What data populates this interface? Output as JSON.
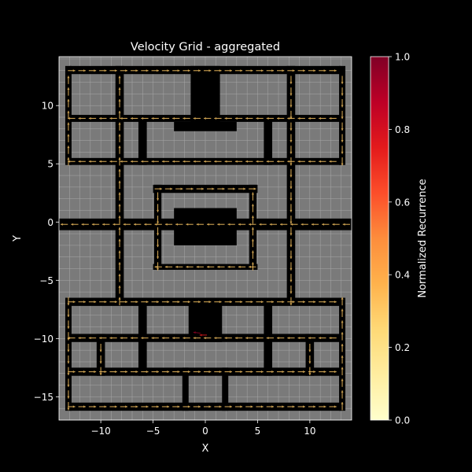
{
  "chart_data": {
    "type": "quiver",
    "title": "Velocity Grid - aggregated",
    "xlabel": "X",
    "ylabel": "Y",
    "xlim": [
      -14,
      14
    ],
    "ylim": [
      -17,
      14.2
    ],
    "xticks": [
      -10,
      -5,
      0,
      5,
      10
    ],
    "yticks": [
      -15,
      -10,
      -5,
      0,
      5,
      10
    ],
    "grid": true,
    "background": "#000000",
    "floor_color": "#7a7a7a",
    "wall_color": "#000000",
    "colorbar": {
      "label": "Normalized Recurrence",
      "min": 0,
      "max": 1,
      "ticks": [
        0.0,
        0.2,
        0.4,
        0.6,
        0.8,
        1.0
      ],
      "tick_labels": [
        "0.0",
        "0.2",
        "0.4",
        "0.6",
        "0.8",
        "1.0"
      ],
      "colormap": "YlOrRd",
      "stops": [
        "#ffffcc",
        "#ffeda0",
        "#fed976",
        "#feb24c",
        "#fd8d3c",
        "#fc4e2a",
        "#e31a1c",
        "#bd0026",
        "#800026"
      ]
    },
    "obstacles": [
      {
        "x0": -14,
        "x1": 14,
        "y0": -0.7,
        "y1": 0.3
      },
      {
        "x0": -3,
        "x1": 3,
        "y0": -2,
        "y1": 1.2
      },
      {
        "x0": -5,
        "x1": 5,
        "y0": 2.5,
        "y1": 3.2
      },
      {
        "x0": -5,
        "x1": 5,
        "y0": -4.1,
        "y1": -3.6
      },
      {
        "x0": -4.9,
        "x1": -4.2,
        "y0": -4.1,
        "y1": 3.2
      },
      {
        "x0": 4.2,
        "x1": 4.9,
        "y0": -4.1,
        "y1": 3.2
      },
      {
        "x0": -13,
        "x1": 13,
        "y0": 12.7,
        "y1": 13.4
      },
      {
        "x0": -13,
        "x1": 13,
        "y0": 8.6,
        "y1": 9.2
      },
      {
        "x0": -13,
        "x1": 13,
        "y0": 4.9,
        "y1": 5.5
      },
      {
        "x0": -13.4,
        "x1": -12.8,
        "y0": 4.9,
        "y1": 13.4
      },
      {
        "x0": 12.8,
        "x1": 13.4,
        "y0": 4.9,
        "y1": 13.4
      },
      {
        "x0": -8.6,
        "x1": -7.8,
        "y0": -7,
        "y1": 13.4
      },
      {
        "x0": 7.8,
        "x1": 8.6,
        "y0": -7,
        "y1": 13.4
      },
      {
        "x0": -1.4,
        "x1": 1.4,
        "y0": 8.6,
        "y1": 13.4
      },
      {
        "x0": -3,
        "x1": 3,
        "y0": 7.8,
        "y1": 8.6
      },
      {
        "x0": -6.4,
        "x1": -5.6,
        "y0": 4.9,
        "y1": 9.2
      },
      {
        "x0": 5.6,
        "x1": 6.4,
        "y0": 4.9,
        "y1": 9.2
      },
      {
        "x0": -13,
        "x1": 13,
        "y0": -7.2,
        "y1": -6.5
      },
      {
        "x0": -13,
        "x1": 13,
        "y0": -10.3,
        "y1": -9.6
      },
      {
        "x0": -13,
        "x1": 13,
        "y0": -13.2,
        "y1": -12.5
      },
      {
        "x0": -13,
        "x1": 13,
        "y0": -16.2,
        "y1": -15.5
      },
      {
        "x0": -13.4,
        "x1": -12.8,
        "y0": -16.2,
        "y1": -6.5
      },
      {
        "x0": 12.8,
        "x1": 13.4,
        "y0": -16.2,
        "y1": -6.5
      },
      {
        "x0": -1.6,
        "x1": 1.6,
        "y0": -10.3,
        "y1": -6.5
      },
      {
        "x0": -10.4,
        "x1": -9.6,
        "y0": -13.2,
        "y1": -9.6
      },
      {
        "x0": 9.6,
        "x1": 10.4,
        "y0": -13.2,
        "y1": -9.6
      },
      {
        "x0": -6.4,
        "x1": -5.6,
        "y0": -13.2,
        "y1": -6.5
      },
      {
        "x0": 5.6,
        "x1": 6.4,
        "y0": -13.2,
        "y1": -6.5
      },
      {
        "x0": -2.2,
        "x1": -1.6,
        "y0": -16.2,
        "y1": -12.5
      },
      {
        "x0": 1.6,
        "x1": 2.2,
        "y0": -16.2,
        "y1": -12.5
      }
    ],
    "arrow_lanes": [
      {
        "axis": "h",
        "y": 13.0,
        "from": -12.8,
        "to": 12.8,
        "step": 1.0,
        "dir": 1
      },
      {
        "axis": "h",
        "y": 8.9,
        "from": -12.8,
        "to": 12.8,
        "step": 1.0,
        "dir": -1
      },
      {
        "axis": "h",
        "y": 5.2,
        "from": -12.8,
        "to": 12.8,
        "step": 1.0,
        "dir": -1
      },
      {
        "axis": "h",
        "y": -0.2,
        "from": -13.5,
        "to": 13.5,
        "step": 1.0,
        "dir": -1
      },
      {
        "axis": "h",
        "y": 2.85,
        "from": -4.5,
        "to": 4.5,
        "step": 1.0,
        "dir": 1
      },
      {
        "axis": "h",
        "y": -3.85,
        "from": -4.5,
        "to": 4.5,
        "step": 1.0,
        "dir": -1
      },
      {
        "axis": "h",
        "y": -6.85,
        "from": -12.8,
        "to": 12.8,
        "step": 1.0,
        "dir": 1
      },
      {
        "axis": "h",
        "y": -9.95,
        "from": -12.8,
        "to": 12.8,
        "step": 1.0,
        "dir": -1
      },
      {
        "axis": "h",
        "y": -12.85,
        "from": -12.8,
        "to": 12.8,
        "step": 1.0,
        "dir": 1
      },
      {
        "axis": "h",
        "y": -15.85,
        "from": -12.8,
        "to": 12.8,
        "step": 1.0,
        "dir": 1
      },
      {
        "axis": "v",
        "x": -13.1,
        "from": 5.2,
        "to": 13.0,
        "step": 1.0,
        "dir": 1
      },
      {
        "axis": "v",
        "x": 13.1,
        "from": 5.2,
        "to": 13.0,
        "step": 1.0,
        "dir": -1
      },
      {
        "axis": "v",
        "x": -8.2,
        "from": -6.8,
        "to": 13.0,
        "step": 1.0,
        "dir": 1
      },
      {
        "axis": "v",
        "x": 8.2,
        "from": -6.8,
        "to": 13.0,
        "step": 1.0,
        "dir": -1
      },
      {
        "axis": "v",
        "x": -4.55,
        "from": -3.8,
        "to": 2.8,
        "step": 1.0,
        "dir": -1
      },
      {
        "axis": "v",
        "x": 4.55,
        "from": -3.8,
        "to": 2.8,
        "step": 1.0,
        "dir": 1
      },
      {
        "axis": "v",
        "x": -13.1,
        "from": -15.8,
        "to": -6.8,
        "step": 1.0,
        "dir": -1
      },
      {
        "axis": "v",
        "x": 13.1,
        "from": -15.8,
        "to": -6.8,
        "step": 1.0,
        "dir": 1
      },
      {
        "axis": "v",
        "x": -10.0,
        "from": -12.8,
        "to": -9.9,
        "step": 1.0,
        "dir": -1
      },
      {
        "axis": "v",
        "x": 10.0,
        "from": -12.8,
        "to": -9.9,
        "step": 1.0,
        "dir": -1
      }
    ],
    "hot_arrows": [
      {
        "x": -0.8,
        "y": -9.5,
        "u": -0.9,
        "v": 0.1,
        "value": 0.95
      },
      {
        "x": -0.2,
        "y": -9.7,
        "u": -0.9,
        "v": 0.0,
        "value": 0.75
      }
    ],
    "base_recurrence": 0.3
  }
}
